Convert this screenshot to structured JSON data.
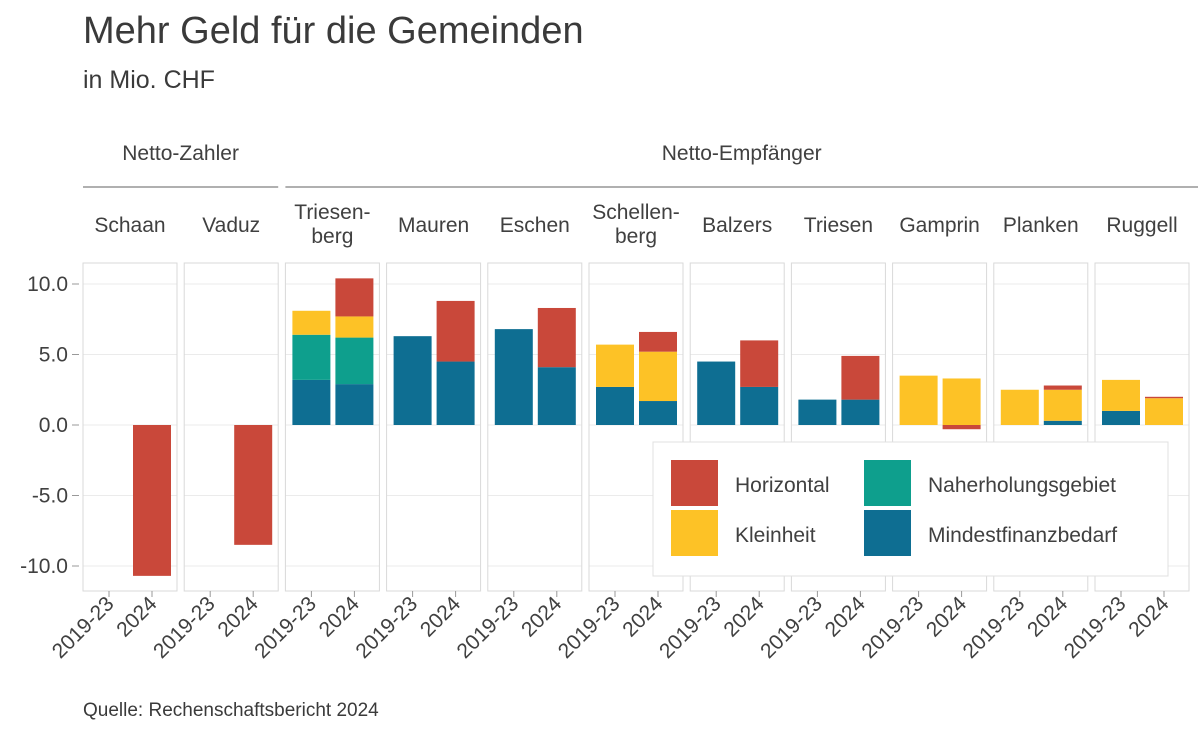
{
  "title": "Mehr Geld für die Gemeinden",
  "subtitle": "in Mio. CHF",
  "source": "Quelle: Rechenschaftsbericht 2024",
  "colors": {
    "Horizontal": "#C9483A",
    "Naherholungsgebiet": "#0E9F8D",
    "Kleinheit": "#FDC226",
    "Mindestfinanzbedarf": "#0E6E92"
  },
  "chart_data": {
    "type": "bar",
    "stacked": true,
    "title": "Mehr Geld für die Gemeinden",
    "subtitle": "in Mio. CHF",
    "ylim": [
      -11.7,
      11.7
    ],
    "yticks": [
      10.0,
      5.0,
      0.0,
      -5.0,
      -10.0
    ],
    "ytick_labels": [
      "10.0",
      "5.0",
      "0.0",
      "-5.0",
      "-10.0"
    ],
    "grid": true,
    "legend_position": "bottom-right",
    "legend": [
      "Horizontal",
      "Naherholungsgebiet",
      "Kleinheit",
      "Mindestfinanzbedarf"
    ],
    "series_order": [
      "Mindestfinanzbedarf",
      "Naherholungsgebiet",
      "Kleinheit",
      "Horizontal"
    ],
    "groups": [
      {
        "name": "Netto-Zahler",
        "panels": [
          "Schaan",
          "Vaduz"
        ]
      },
      {
        "name": "Netto-Empfänger",
        "panels": [
          "Triesenberg",
          "Mauren",
          "Eschen",
          "Schellenberg",
          "Balzers",
          "Triesen",
          "Gamprin",
          "Planken",
          "Ruggell"
        ]
      }
    ],
    "categories": [
      "2019-23",
      "2024"
    ],
    "panels": [
      {
        "name": "Schaan",
        "label_lines": [
          "Schaan"
        ],
        "bars": [
          {
            "category": "2019-23",
            "Mindestfinanzbedarf": 0,
            "Naherholungsgebiet": 0,
            "Kleinheit": 0,
            "Horizontal": 0
          },
          {
            "category": "2024",
            "Mindestfinanzbedarf": 0,
            "Naherholungsgebiet": 0,
            "Kleinheit": 0,
            "Horizontal": -10.7
          }
        ]
      },
      {
        "name": "Vaduz",
        "label_lines": [
          "Vaduz"
        ],
        "bars": [
          {
            "category": "2019-23",
            "Mindestfinanzbedarf": 0,
            "Naherholungsgebiet": 0,
            "Kleinheit": 0,
            "Horizontal": 0
          },
          {
            "category": "2024",
            "Mindestfinanzbedarf": 0,
            "Naherholungsgebiet": 0,
            "Kleinheit": 0,
            "Horizontal": -8.5
          }
        ]
      },
      {
        "name": "Triesenberg",
        "label_lines": [
          "Triesen-",
          "berg"
        ],
        "bars": [
          {
            "category": "2019-23",
            "Mindestfinanzbedarf": 3.2,
            "Naherholungsgebiet": 3.2,
            "Kleinheit": 1.7,
            "Horizontal": 0
          },
          {
            "category": "2024",
            "Mindestfinanzbedarf": 2.9,
            "Naherholungsgebiet": 3.3,
            "Kleinheit": 1.5,
            "Horizontal": 2.7
          }
        ]
      },
      {
        "name": "Mauren",
        "label_lines": [
          "Mauren"
        ],
        "bars": [
          {
            "category": "2019-23",
            "Mindestfinanzbedarf": 6.3,
            "Naherholungsgebiet": 0,
            "Kleinheit": 0,
            "Horizontal": 0
          },
          {
            "category": "2024",
            "Mindestfinanzbedarf": 4.5,
            "Naherholungsgebiet": 0,
            "Kleinheit": 0,
            "Horizontal": 4.3
          }
        ]
      },
      {
        "name": "Eschen",
        "label_lines": [
          "Eschen"
        ],
        "bars": [
          {
            "category": "2019-23",
            "Mindestfinanzbedarf": 6.8,
            "Naherholungsgebiet": 0,
            "Kleinheit": 0,
            "Horizontal": 0
          },
          {
            "category": "2024",
            "Mindestfinanzbedarf": 4.1,
            "Naherholungsgebiet": 0,
            "Kleinheit": 0,
            "Horizontal": 4.2
          }
        ]
      },
      {
        "name": "Schellenberg",
        "label_lines": [
          "Schellen-",
          "berg"
        ],
        "bars": [
          {
            "category": "2019-23",
            "Mindestfinanzbedarf": 2.7,
            "Naherholungsgebiet": 0,
            "Kleinheit": 3.0,
            "Horizontal": 0
          },
          {
            "category": "2024",
            "Mindestfinanzbedarf": 1.7,
            "Naherholungsgebiet": 0,
            "Kleinheit": 3.5,
            "Horizontal": 1.4
          }
        ]
      },
      {
        "name": "Balzers",
        "label_lines": [
          "Balzers"
        ],
        "bars": [
          {
            "category": "2019-23",
            "Mindestfinanzbedarf": 4.5,
            "Naherholungsgebiet": 0,
            "Kleinheit": 0,
            "Horizontal": 0
          },
          {
            "category": "2024",
            "Mindestfinanzbedarf": 2.7,
            "Naherholungsgebiet": 0,
            "Kleinheit": 0,
            "Horizontal": 3.3
          }
        ]
      },
      {
        "name": "Triesen",
        "label_lines": [
          "Triesen"
        ],
        "bars": [
          {
            "category": "2019-23",
            "Mindestfinanzbedarf": 1.8,
            "Naherholungsgebiet": 0,
            "Kleinheit": 0,
            "Horizontal": 0
          },
          {
            "category": "2024",
            "Mindestfinanzbedarf": 1.8,
            "Naherholungsgebiet": 0,
            "Kleinheit": 0,
            "Horizontal": 3.1
          }
        ]
      },
      {
        "name": "Gamprin",
        "label_lines": [
          "Gamprin"
        ],
        "bars": [
          {
            "category": "2019-23",
            "Mindestfinanzbedarf": 0,
            "Naherholungsgebiet": 0,
            "Kleinheit": 3.5,
            "Horizontal": 0
          },
          {
            "category": "2024",
            "Mindestfinanzbedarf": 0,
            "Naherholungsgebiet": 0,
            "Kleinheit": 3.3,
            "Horizontal": -0.3
          }
        ]
      },
      {
        "name": "Planken",
        "label_lines": [
          "Planken"
        ],
        "bars": [
          {
            "category": "2019-23",
            "Mindestfinanzbedarf": 0,
            "Naherholungsgebiet": 0,
            "Kleinheit": 2.5,
            "Horizontal": 0
          },
          {
            "category": "2024",
            "Mindestfinanzbedarf": 0.3,
            "Naherholungsgebiet": 0,
            "Kleinheit": 2.2,
            "Horizontal": 0.3
          }
        ]
      },
      {
        "name": "Ruggell",
        "label_lines": [
          "Ruggell"
        ],
        "bars": [
          {
            "category": "2019-23",
            "Mindestfinanzbedarf": 1.0,
            "Naherholungsgebiet": 0,
            "Kleinheit": 2.2,
            "Horizontal": 0
          },
          {
            "category": "2024",
            "Mindestfinanzbedarf": 0,
            "Naherholungsgebiet": 0,
            "Kleinheit": 1.9,
            "Horizontal": 0.1
          }
        ]
      }
    ]
  }
}
